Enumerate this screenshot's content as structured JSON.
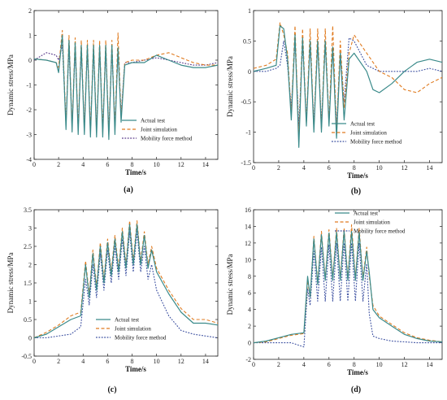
{
  "chart_data": [
    {
      "id": "a",
      "type": "line",
      "panel_label": "(a)",
      "xlabel": "Time/s",
      "ylabel": "Dynamic stress/MPa",
      "xlim": [
        0,
        15
      ],
      "ylim": [
        -4,
        2
      ],
      "xticks": [
        0,
        2,
        4,
        6,
        8,
        10,
        12,
        14
      ],
      "yticks": [
        -4,
        -3,
        -2,
        -1,
        0,
        1,
        2
      ],
      "legend_position": "lower-right",
      "series": [
        {
          "name": "Actual test",
          "color": "#3a8a8a",
          "style": "solid",
          "x": [
            0,
            1,
            1.8,
            2.0,
            2.3,
            2.6,
            2.85,
            3.1,
            3.35,
            3.6,
            3.85,
            4.1,
            4.35,
            4.6,
            4.85,
            5.1,
            5.35,
            5.6,
            5.85,
            6.1,
            6.35,
            6.6,
            6.85,
            7.1,
            7.4,
            8,
            9,
            10,
            11,
            12,
            13,
            14,
            15
          ],
          "y": [
            0.05,
            0.0,
            -0.1,
            -0.5,
            1.0,
            -2.8,
            0.8,
            -2.9,
            0.7,
            -3.0,
            0.6,
            -3.0,
            0.6,
            -3.1,
            0.6,
            -3.1,
            0.6,
            -3.1,
            0.6,
            -3.2,
            0.6,
            -3.0,
            0.5,
            -2.5,
            -0.2,
            -0.1,
            -0.1,
            0.2,
            0.0,
            -0.2,
            -0.3,
            -0.3,
            -0.2
          ]
        },
        {
          "name": "Joint simulation",
          "color": "#e07b20",
          "style": "dashed",
          "x": [
            0,
            1,
            1.8,
            2.0,
            2.3,
            2.6,
            2.85,
            3.1,
            3.35,
            3.6,
            3.85,
            4.1,
            4.35,
            4.6,
            4.85,
            5.1,
            5.35,
            5.6,
            5.85,
            6.1,
            6.35,
            6.6,
            6.85,
            7.1,
            7.4,
            8,
            9,
            10,
            11,
            12,
            13,
            14,
            15
          ],
          "y": [
            0.05,
            0.0,
            -0.1,
            -0.3,
            1.2,
            -2.6,
            1.0,
            -2.7,
            0.9,
            -2.8,
            0.8,
            -2.8,
            0.8,
            -2.9,
            0.8,
            -2.9,
            0.8,
            -2.9,
            0.8,
            -3.0,
            0.8,
            -2.8,
            1.1,
            -2.3,
            -0.1,
            0.0,
            0.0,
            0.2,
            0.3,
            0.1,
            -0.1,
            -0.2,
            -0.2
          ]
        },
        {
          "name": "Mobility force method",
          "color": "#5a3a8a",
          "style": "dotted",
          "x": [
            0,
            1,
            1.8,
            2.0,
            2.3,
            2.6,
            2.85,
            3.1,
            3.35,
            3.6,
            3.85,
            4.1,
            4.35,
            4.6,
            4.85,
            5.1,
            5.35,
            5.6,
            5.85,
            6.1,
            6.35,
            6.6,
            6.85,
            7.1,
            7.4,
            8,
            9,
            10,
            11,
            12,
            13,
            14,
            15
          ],
          "y": [
            0.0,
            0.3,
            0.2,
            0.0,
            0.6,
            -2.5,
            0.5,
            -2.6,
            0.4,
            -2.7,
            0.4,
            -2.7,
            0.4,
            -2.8,
            0.4,
            -2.8,
            0.4,
            -2.8,
            0.4,
            -2.9,
            0.4,
            -2.7,
            0.3,
            -2.2,
            -0.1,
            -0.1,
            0.0,
            0.1,
            0.0,
            -0.1,
            -0.2,
            -0.2,
            -0.1
          ]
        }
      ]
    },
    {
      "id": "b",
      "type": "line",
      "panel_label": "(b)",
      "xlabel": "Time/s",
      "ylabel": "Dynamic stress/MPa",
      "xlim": [
        0,
        15
      ],
      "ylim": [
        -1.5,
        1.0
      ],
      "xticks": [
        0,
        2,
        4,
        6,
        8,
        10,
        12,
        14
      ],
      "yticks": [
        -1.5,
        -1.0,
        -0.5,
        0.0,
        0.5,
        1.0
      ],
      "legend_position": "lower-right",
      "series": [
        {
          "name": "Actual test",
          "color": "#3a8a8a",
          "style": "solid",
          "x": [
            0,
            1,
            1.8,
            2.1,
            2.4,
            2.7,
            3.0,
            3.3,
            3.6,
            3.9,
            4.2,
            4.5,
            4.8,
            5.1,
            5.4,
            5.7,
            6.0,
            6.3,
            6.6,
            6.9,
            7.2,
            7.6,
            8,
            9,
            9.5,
            10,
            11,
            12,
            13,
            14,
            15
          ],
          "y": [
            0.0,
            0.05,
            0.1,
            0.75,
            0.7,
            0.2,
            -0.8,
            0.6,
            -1.25,
            0.55,
            -0.9,
            0.5,
            -1.0,
            0.5,
            -1.0,
            0.5,
            -0.9,
            0.4,
            -1.1,
            0.3,
            -0.8,
            0.2,
            0.3,
            0.0,
            -0.3,
            -0.35,
            -0.2,
            0.0,
            0.15,
            0.2,
            0.15
          ]
        },
        {
          "name": "Joint simulation",
          "color": "#e07b20",
          "style": "dashed",
          "x": [
            0,
            1,
            1.8,
            2.1,
            2.4,
            2.7,
            3.0,
            3.3,
            3.6,
            3.9,
            4.2,
            4.5,
            4.8,
            5.1,
            5.4,
            5.7,
            6.0,
            6.3,
            6.6,
            6.9,
            7.2,
            7.6,
            8,
            9,
            10,
            11,
            12,
            13,
            14,
            15
          ],
          "y": [
            0.05,
            0.1,
            0.2,
            0.8,
            0.6,
            0.3,
            -0.7,
            0.75,
            -1.1,
            0.7,
            -0.85,
            0.7,
            -0.95,
            0.7,
            -0.95,
            0.7,
            -0.85,
            0.75,
            -1.0,
            0.5,
            -0.6,
            0.3,
            0.6,
            0.3,
            0.0,
            -0.1,
            -0.3,
            -0.35,
            -0.2,
            -0.1
          ]
        },
        {
          "name": "Mobility force method",
          "color": "#3b4fa0",
          "style": "dotted",
          "x": [
            0,
            1,
            1.8,
            2.1,
            2.4,
            2.7,
            3.0,
            3.3,
            3.6,
            3.9,
            4.2,
            4.5,
            4.8,
            5.1,
            5.4,
            5.7,
            6.0,
            6.3,
            6.6,
            6.9,
            7.2,
            7.6,
            8,
            9,
            10,
            11,
            12,
            13,
            14,
            15
          ],
          "y": [
            0.0,
            0.0,
            0.05,
            0.1,
            0.5,
            0.1,
            -0.6,
            0.5,
            -0.9,
            0.45,
            -0.8,
            0.45,
            -0.85,
            0.45,
            -0.85,
            0.45,
            -0.8,
            0.4,
            -0.9,
            0.3,
            -0.5,
            0.55,
            0.5,
            0.1,
            0.0,
            0.0,
            0.0,
            0.0,
            0.05,
            0.0
          ]
        }
      ]
    },
    {
      "id": "c",
      "type": "line",
      "panel_label": "(c)",
      "xlabel": "Time/s",
      "ylabel": "Dynamic stress/MPa",
      "xlim": [
        0,
        15
      ],
      "ylim": [
        -0.5,
        3.5
      ],
      "xticks": [
        0,
        2,
        4,
        6,
        8,
        10,
        12,
        14
      ],
      "yticks": [
        -0.5,
        0.0,
        0.5,
        1.0,
        1.5,
        2.0,
        2.5,
        3.0,
        3.5
      ],
      "legend_position": "lower-right",
      "series": [
        {
          "name": "Actual test",
          "color": "#3a8a8a",
          "style": "solid",
          "x": [
            0,
            1,
            2,
            3,
            3.8,
            4.2,
            4.5,
            4.8,
            5.1,
            5.4,
            5.7,
            6.0,
            6.3,
            6.6,
            6.9,
            7.2,
            7.5,
            7.8,
            8.1,
            8.4,
            8.7,
            9.0,
            9.3,
            9.6,
            10,
            11,
            12,
            13,
            14,
            15
          ],
          "y": [
            0.0,
            0.1,
            0.3,
            0.5,
            0.6,
            2.0,
            1.1,
            2.3,
            1.3,
            2.5,
            1.5,
            2.6,
            1.7,
            2.7,
            1.8,
            2.9,
            1.9,
            3.1,
            2.0,
            3.1,
            2.0,
            2.8,
            1.9,
            2.4,
            1.8,
            1.2,
            0.7,
            0.4,
            0.4,
            0.35
          ]
        },
        {
          "name": "Joint simulation",
          "color": "#e07b20",
          "style": "dashed",
          "x": [
            0,
            1,
            2,
            3,
            3.8,
            4.2,
            4.5,
            4.8,
            5.1,
            5.4,
            5.7,
            6.0,
            6.3,
            6.6,
            6.9,
            7.2,
            7.5,
            7.8,
            8.1,
            8.4,
            8.7,
            9.0,
            9.3,
            9.6,
            10,
            11,
            12,
            13,
            14,
            15
          ],
          "y": [
            0.0,
            0.15,
            0.35,
            0.6,
            0.7,
            2.1,
            1.2,
            2.4,
            1.4,
            2.6,
            1.6,
            2.7,
            1.8,
            2.8,
            1.9,
            3.0,
            2.0,
            3.2,
            2.1,
            3.2,
            2.1,
            2.9,
            2.0,
            2.5,
            1.9,
            1.3,
            0.8,
            0.5,
            0.5,
            0.4
          ]
        },
        {
          "name": "Mobility force method",
          "color": "#3b4fa0",
          "style": "dotted",
          "x": [
            0,
            1,
            2,
            3,
            3.8,
            4.2,
            4.5,
            4.8,
            5.1,
            5.4,
            5.7,
            6.0,
            6.3,
            6.6,
            6.9,
            7.2,
            7.5,
            7.8,
            8.1,
            8.4,
            8.7,
            9.0,
            9.3,
            9.6,
            10,
            11,
            12,
            13,
            14,
            15
          ],
          "y": [
            0.0,
            0.0,
            0.05,
            0.1,
            0.3,
            1.6,
            0.9,
            2.0,
            1.1,
            2.3,
            1.3,
            2.4,
            1.5,
            2.5,
            1.6,
            2.7,
            1.7,
            2.9,
            1.8,
            2.9,
            1.8,
            2.5,
            1.6,
            2.0,
            1.3,
            0.6,
            0.2,
            0.1,
            0.05,
            0.0
          ]
        }
      ]
    },
    {
      "id": "d",
      "type": "line",
      "panel_label": "(d)",
      "xlabel": "Time/s",
      "ylabel": "Dynamic stress/MPa",
      "xlim": [
        0,
        15
      ],
      "ylim": [
        -2,
        16
      ],
      "xticks": [
        0,
        2,
        4,
        6,
        8,
        10,
        12,
        14
      ],
      "yticks": [
        -2,
        0,
        2,
        4,
        6,
        8,
        10,
        12,
        14,
        16
      ],
      "legend_position": "top-right",
      "series": [
        {
          "name": "Actual test",
          "color": "#3a8a8a",
          "style": "solid",
          "x": [
            0,
            1,
            2,
            3,
            4,
            4.3,
            4.5,
            4.8,
            5.1,
            5.4,
            5.7,
            6.0,
            6.3,
            6.6,
            6.9,
            7.2,
            7.5,
            7.8,
            8.1,
            8.4,
            8.7,
            9.0,
            9.2,
            9.5,
            10,
            11,
            12,
            13,
            14,
            15
          ],
          "y": [
            0.0,
            0.2,
            0.6,
            1.0,
            1.2,
            8.0,
            5.5,
            12.5,
            7.0,
            13.0,
            7.5,
            13.2,
            7.5,
            13.3,
            7.5,
            13.4,
            7.5,
            13.4,
            7.5,
            13.3,
            7.5,
            11.0,
            8.5,
            4.0,
            3.0,
            2.0,
            1.0,
            0.5,
            0.2,
            0.1
          ]
        },
        {
          "name": "Joint simulation",
          "color": "#e07b20",
          "style": "dashed",
          "x": [
            0,
            1,
            2,
            3,
            4,
            4.3,
            4.5,
            4.8,
            5.1,
            5.4,
            5.7,
            6.0,
            6.3,
            6.6,
            6.9,
            7.2,
            7.5,
            7.8,
            8.1,
            8.4,
            8.7,
            9.0,
            9.2,
            9.5,
            10,
            11,
            12,
            13,
            14,
            15
          ],
          "y": [
            0.0,
            0.1,
            0.5,
            0.9,
            1.1,
            7.5,
            5.5,
            12.8,
            7.2,
            13.4,
            7.7,
            13.6,
            7.8,
            13.8,
            7.8,
            13.8,
            7.8,
            14.2,
            7.8,
            13.8,
            7.8,
            11.5,
            8.0,
            4.5,
            3.2,
            2.2,
            1.2,
            0.6,
            0.3,
            0.1
          ]
        },
        {
          "name": "Mobility force method",
          "color": "#3b4fa0",
          "style": "dotted",
          "x": [
            0,
            1,
            2,
            3,
            4,
            4.3,
            4.5,
            4.8,
            5.1,
            5.4,
            5.7,
            6.0,
            6.3,
            6.6,
            6.9,
            7.2,
            7.5,
            7.8,
            8.1,
            8.4,
            8.7,
            9.0,
            9.2,
            9.5,
            10,
            11,
            12,
            13,
            14,
            15
          ],
          "y": [
            0.0,
            0.0,
            0.0,
            0.0,
            -0.5,
            6.5,
            4.5,
            11.0,
            5.0,
            11.5,
            5.0,
            11.8,
            5.0,
            12.0,
            5.0,
            12.0,
            5.0,
            12.0,
            5.0,
            12.0,
            5.0,
            9.5,
            3.5,
            0.8,
            0.5,
            0.2,
            0.1,
            0.0,
            0.0,
            0.0
          ]
        }
      ]
    }
  ]
}
